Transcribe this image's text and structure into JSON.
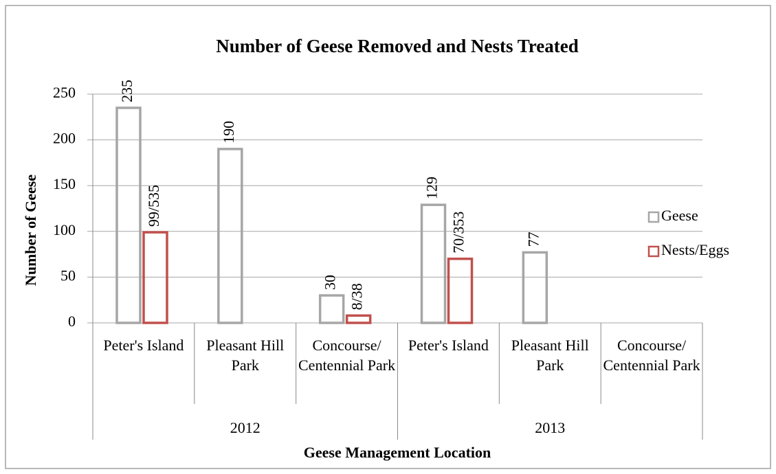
{
  "chart_data": {
    "type": "bar",
    "title": "Number of Geese Removed and Nests Treated",
    "y_label": "Number of Geese",
    "x_label": "Geese Management Location",
    "category_groups": [
      {
        "label": "2012",
        "categories": [
          "Peter's Island",
          "Pleasant Hill Park",
          "Concourse/ Centennial Park"
        ]
      },
      {
        "label": "2013",
        "categories": [
          "Peter's Island",
          "Pleasant Hill Park",
          "Concourse/ Centennial Park"
        ]
      }
    ],
    "series": [
      {
        "name": "Geese",
        "color": "#a6a6a6",
        "values": [
          235,
          190,
          30,
          129,
          77,
          null
        ]
      },
      {
        "name": "Nests/Eggs",
        "color": "#c0504d",
        "values": [
          99,
          null,
          8,
          70,
          null,
          null
        ],
        "value_labels": [
          "99/535",
          null,
          "8/38",
          "70/353",
          null,
          null
        ]
      }
    ],
    "ylim": [
      0,
      250
    ],
    "yticks": [
      0,
      50,
      100,
      150,
      200,
      250
    ],
    "grid": true,
    "legend": "right"
  }
}
